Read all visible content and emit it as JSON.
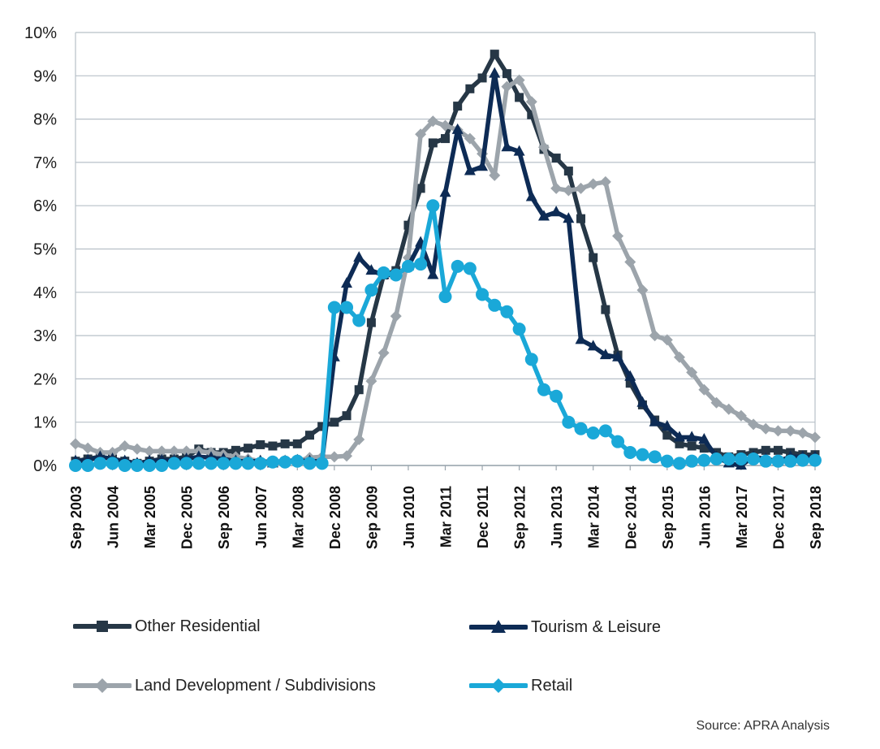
{
  "chart_data": {
    "type": "line",
    "title": "",
    "xlabel": "",
    "ylabel": "",
    "ylim": [
      0,
      10
    ],
    "yticks": [
      "0%",
      "1%",
      "2%",
      "3%",
      "4%",
      "5%",
      "6%",
      "7%",
      "8%",
      "9%",
      "10%"
    ],
    "xtick_labels": [
      "Sep 2003",
      "Jun 2004",
      "Mar 2005",
      "Dec 2005",
      "Sep 2006",
      "Jun 2007",
      "Mar 2008",
      "Dec 2008",
      "Sep 2009",
      "Jun 2010",
      "Mar 2011",
      "Dec 2011",
      "Sep 2012",
      "Jun 2013",
      "Mar 2014",
      "Dec 2014",
      "Sep 2015",
      "Jun 2016",
      "Mar 2017",
      "Dec 2017",
      "Sep 2018"
    ],
    "n_points": 61,
    "series": [
      {
        "name": "Other Residential",
        "color": "#263746",
        "marker": "square",
        "values": [
          0.1,
          0.15,
          0.2,
          0.15,
          0.1,
          0.05,
          0.1,
          0.15,
          0.15,
          0.2,
          0.38,
          0.3,
          0.3,
          0.35,
          0.4,
          0.48,
          0.45,
          0.5,
          0.5,
          0.7,
          0.9,
          1.0,
          1.15,
          1.75,
          3.3,
          4.4,
          4.5,
          5.55,
          6.4,
          7.45,
          7.55,
          8.3,
          8.7,
          8.95,
          9.5,
          9.05,
          8.5,
          8.1,
          7.3,
          7.1,
          6.8,
          5.7,
          4.8,
          3.6,
          2.55,
          1.9,
          1.4,
          1.05,
          0.7,
          0.5,
          0.45,
          0.4,
          0.3,
          0.2,
          0.25,
          0.3,
          0.35,
          0.35,
          0.3,
          0.25,
          0.25
        ]
      },
      {
        "name": "Tourism & Leisure",
        "color": "#0d2b55",
        "marker": "triangle",
        "values": [
          0.1,
          0.12,
          0.2,
          0.15,
          0.1,
          0.05,
          0.1,
          0.12,
          0.12,
          0.15,
          0.2,
          0.18,
          0.15,
          0.1,
          0.1,
          0.1,
          0.05,
          0.1,
          0.12,
          0.1,
          0.1,
          2.5,
          4.2,
          4.8,
          4.5,
          4.4,
          4.4,
          4.6,
          5.15,
          4.4,
          6.3,
          7.75,
          6.8,
          6.9,
          9.05,
          7.35,
          7.25,
          6.2,
          5.75,
          5.85,
          5.7,
          2.9,
          2.75,
          2.55,
          2.5,
          2.05,
          1.45,
          1.0,
          0.9,
          0.65,
          0.65,
          0.6,
          0.2,
          0.05,
          0.0,
          0.2,
          0.15,
          0.1,
          0.2,
          0.2,
          0.2
        ]
      },
      {
        "name": "Land Development / Subdivisions",
        "color": "#9ca4ab",
        "marker": "diamond",
        "values": [
          0.5,
          0.4,
          0.3,
          0.3,
          0.45,
          0.38,
          0.33,
          0.33,
          0.33,
          0.33,
          0.33,
          0.3,
          0.25,
          0.2,
          0.15,
          0.1,
          0.1,
          0.1,
          0.1,
          0.18,
          0.2,
          0.2,
          0.22,
          0.6,
          1.95,
          2.6,
          3.45,
          4.8,
          7.65,
          7.95,
          7.85,
          7.75,
          7.55,
          7.2,
          6.7,
          8.75,
          8.9,
          8.4,
          7.35,
          6.4,
          6.35,
          6.4,
          6.5,
          6.55,
          5.3,
          4.7,
          4.05,
          3.0,
          2.9,
          2.5,
          2.15,
          1.75,
          1.45,
          1.3,
          1.15,
          0.95,
          0.85,
          0.8,
          0.8,
          0.75,
          0.65
        ]
      },
      {
        "name": "Retail",
        "color": "#1aa8d8",
        "marker": "circle",
        "values": [
          0.0,
          0.0,
          0.05,
          0.05,
          0.0,
          0.0,
          0.0,
          0.0,
          0.05,
          0.05,
          0.05,
          0.05,
          0.05,
          0.05,
          0.05,
          0.05,
          0.08,
          0.08,
          0.1,
          0.05,
          0.05,
          3.65,
          3.65,
          3.35,
          4.05,
          4.45,
          4.4,
          4.6,
          4.65,
          6.0,
          3.9,
          4.6,
          4.55,
          3.95,
          3.7,
          3.55,
          3.15,
          2.45,
          1.75,
          1.6,
          1.0,
          0.85,
          0.75,
          0.8,
          0.55,
          0.3,
          0.25,
          0.2,
          0.1,
          0.05,
          0.1,
          0.12,
          0.15,
          0.15,
          0.15,
          0.15,
          0.1,
          0.1,
          0.1,
          0.12,
          0.12
        ]
      }
    ],
    "legend": {
      "placement": "bottom",
      "entries": [
        "Other Residential",
        "Tourism & Leisure",
        "Land Development / Subdivisions",
        "Retail"
      ]
    },
    "grid": true
  },
  "source": "Source: APRA Analysis"
}
